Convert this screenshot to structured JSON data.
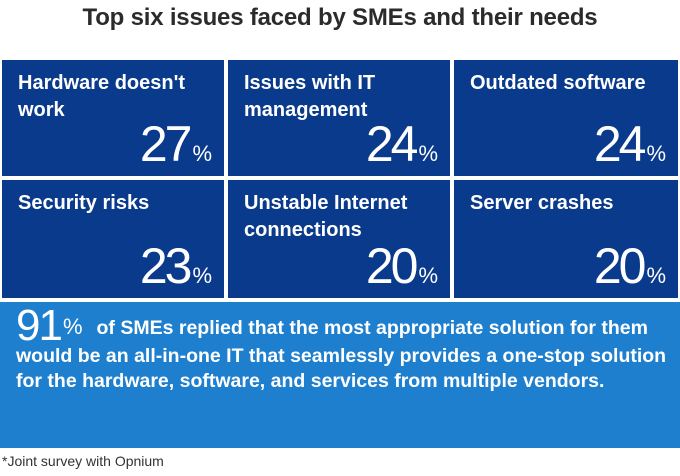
{
  "title": "Top six issues faced by SMEs and their needs",
  "chart_data": {
    "type": "table",
    "title": "Top six issues faced by SMEs and their needs",
    "categories": [
      "Hardware doesn't work",
      "Issues with IT management",
      "Outdated software",
      "Security risks",
      "Unstable Internet connections",
      "Server crashes"
    ],
    "values": [
      27,
      24,
      24,
      23,
      20,
      20
    ],
    "unit": "%",
    "cells": [
      {
        "label": "Hardware doesn't work",
        "value": "27",
        "unit": "%"
      },
      {
        "label": "Issues with IT management",
        "value": "24",
        "unit": "%"
      },
      {
        "label": "Outdated software",
        "value": "24",
        "unit": "%"
      },
      {
        "label": "Security risks",
        "value": "23",
        "unit": "%"
      },
      {
        "label": "Unstable Internet connections",
        "value": "20",
        "unit": "%"
      },
      {
        "label": "Server crashes",
        "value": "20",
        "unit": "%"
      }
    ],
    "highlight": {
      "value": "91",
      "unit": "%",
      "text": "of SMEs replied that the most appropriate solution for them would be an all-in-one IT that seamlessly provides a one-stop solution for the hardware, software, and services from multiple vendors."
    },
    "footnote": "*Joint survey with Opnium"
  },
  "colors": {
    "cell_background": "#0a3a8c",
    "banner_background": "#1e7fce",
    "text_light": "#ffffff",
    "title_text": "#2b2b2b"
  }
}
